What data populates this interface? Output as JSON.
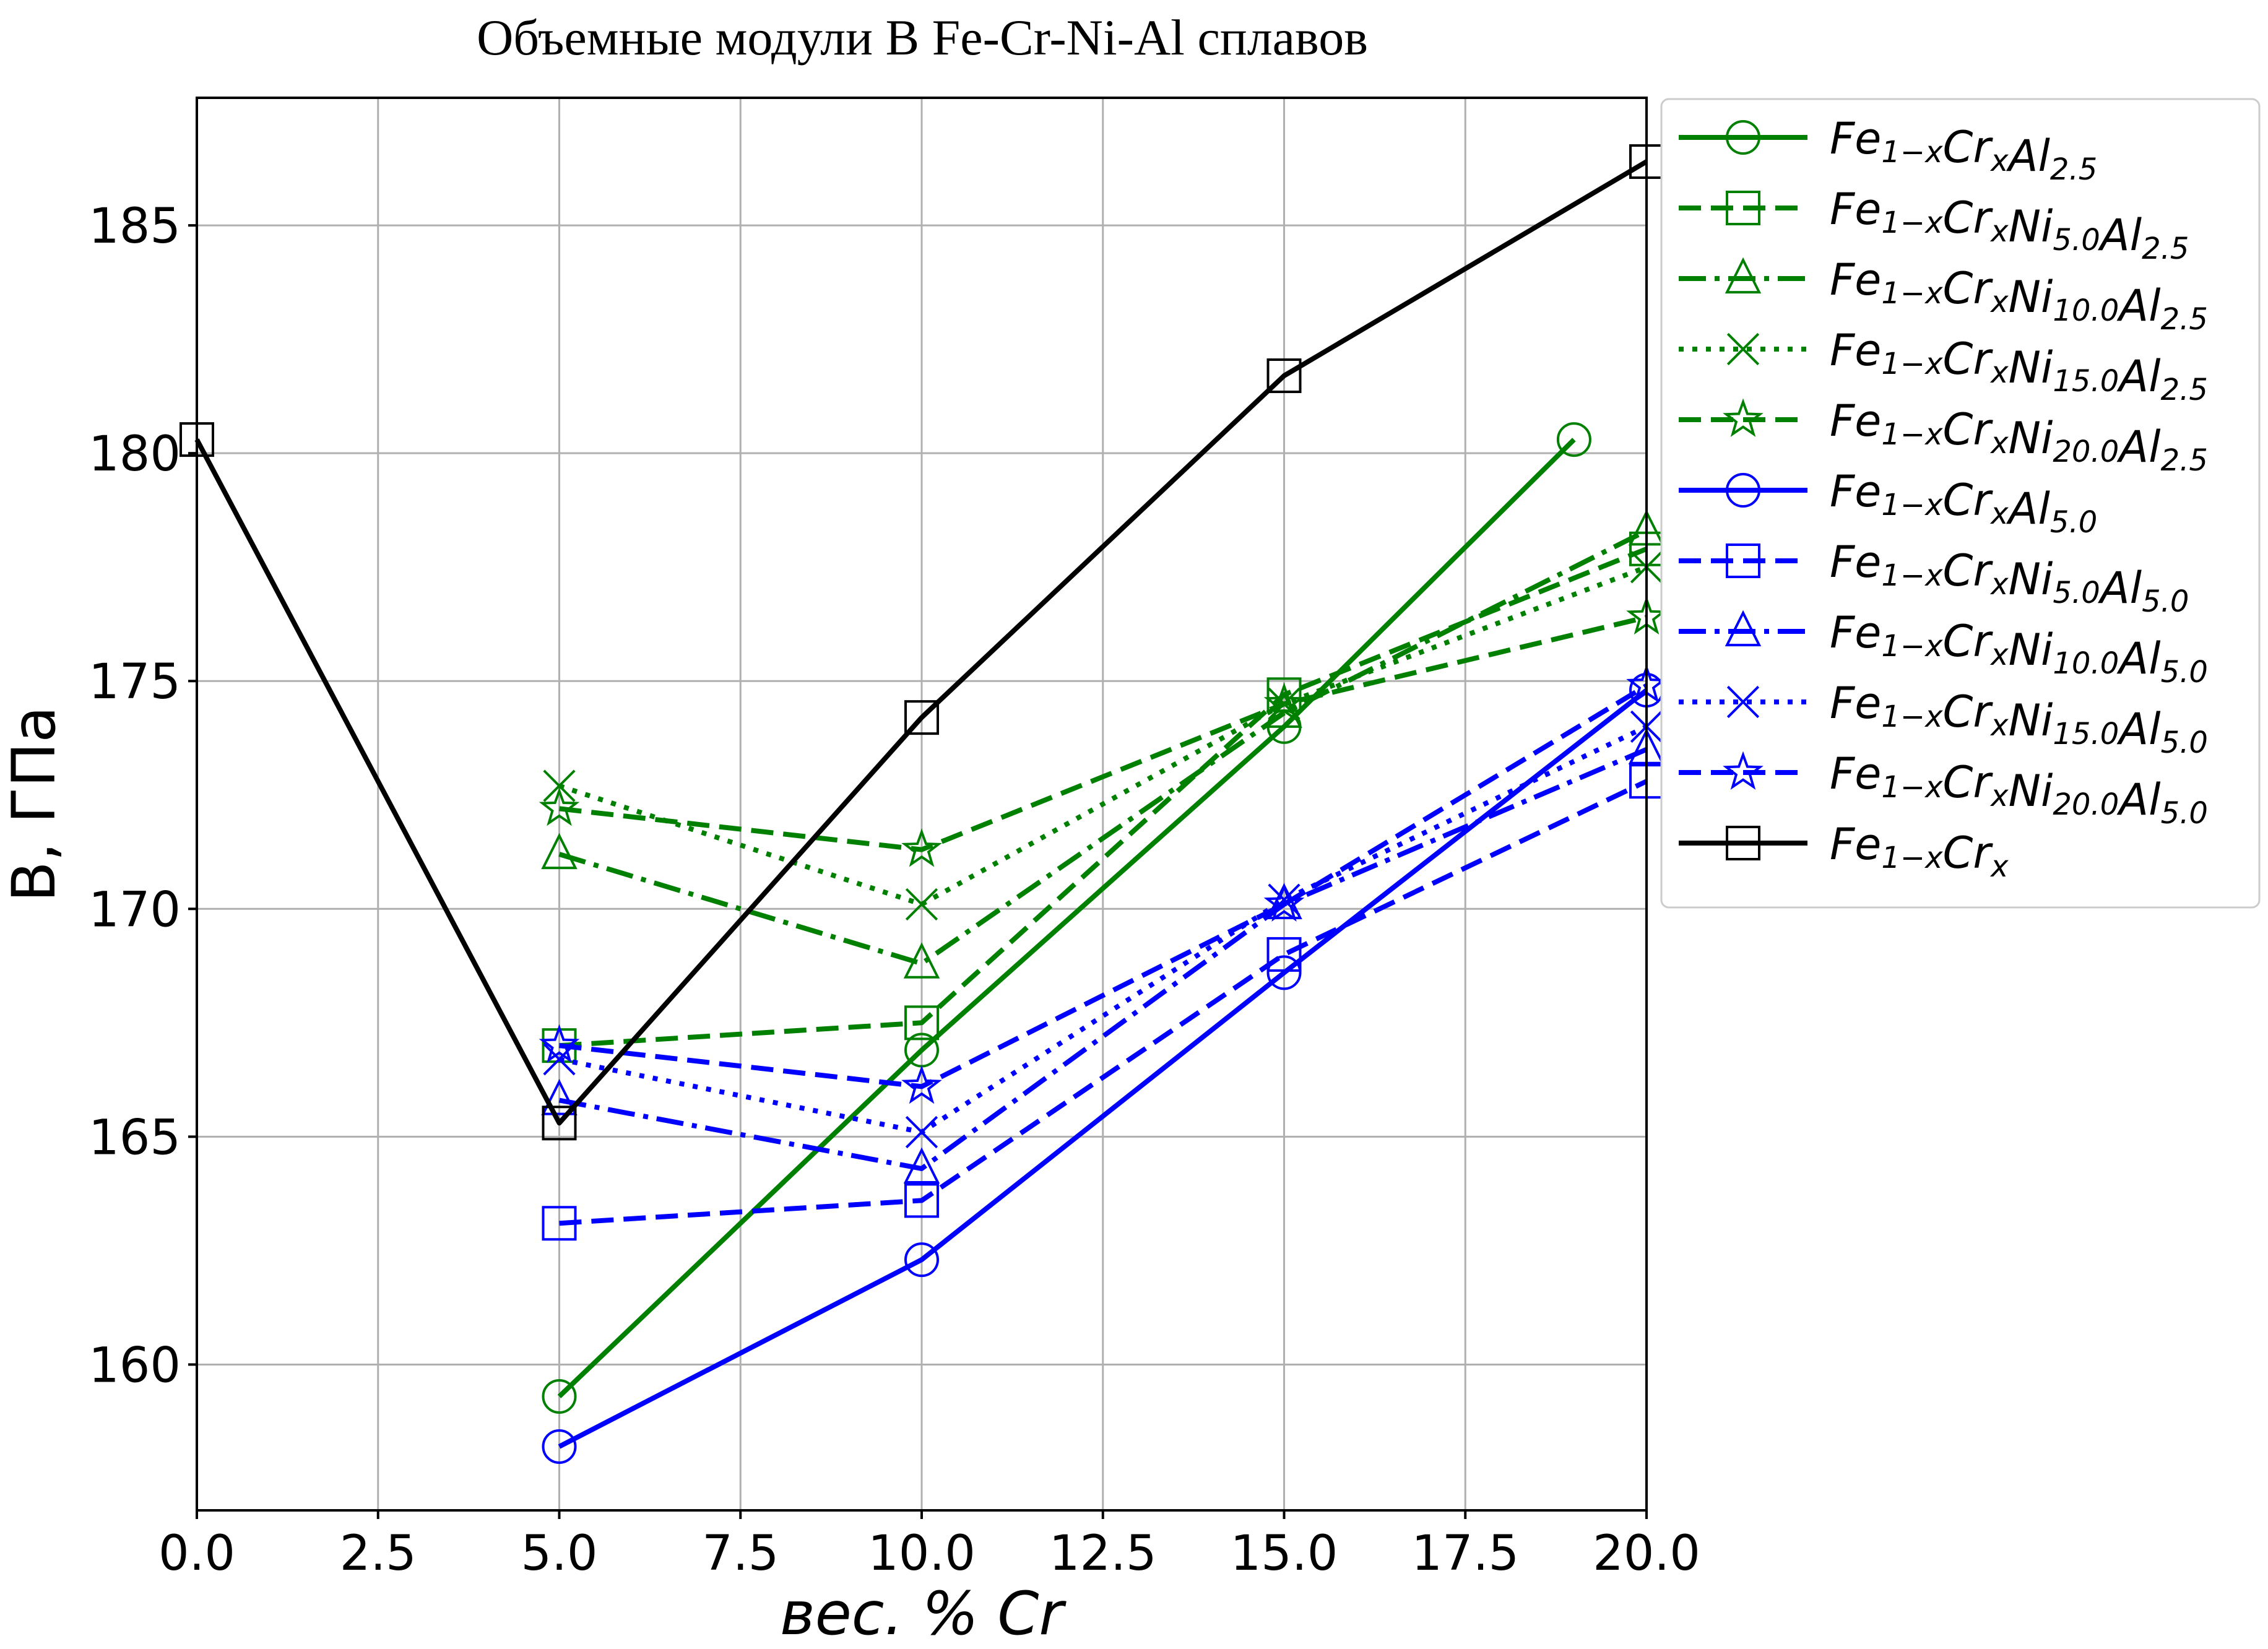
{
  "chart_data": {
    "type": "line",
    "title": "Объемные модули B Fe-Cr-Ni-Al сплавов",
    "xlabel": "вес. % Cr",
    "ylabel": "B, ГПа",
    "xlim": [
      0,
      20
    ],
    "ylim": [
      156.8,
      187.8
    ],
    "xticks": [
      "0.0",
      "2.5",
      "5.0",
      "7.5",
      "10.0",
      "12.5",
      "15.0",
      "17.5",
      "20.0"
    ],
    "yticks": [
      "160",
      "165",
      "170",
      "175",
      "180",
      "185"
    ],
    "grid": true,
    "legend_position": "outside-right-top",
    "series": [
      {
        "name": "Fe1−xCrxAl2.5",
        "name_parts": [
          [
            "Fe",
            ""
          ],
          [
            "1−x",
            "sub"
          ],
          [
            "Cr",
            ""
          ],
          [
            "x",
            "sub"
          ],
          [
            "Al",
            ""
          ],
          [
            "2.5",
            "sub"
          ]
        ],
        "color": "#008000",
        "marker": "circle",
        "linestyle": "solid",
        "x": [
          5,
          10,
          15,
          19
        ],
        "y": [
          159.3,
          166.9,
          174.0,
          180.3
        ]
      },
      {
        "name": "Fe1−xCrxNi5.0Al2.5",
        "name_parts": [
          [
            "Fe",
            ""
          ],
          [
            "1−x",
            "sub"
          ],
          [
            "Cr",
            ""
          ],
          [
            "x",
            "sub"
          ],
          [
            "Ni",
            ""
          ],
          [
            "5.0",
            "sub"
          ],
          [
            "Al",
            ""
          ],
          [
            "2.5",
            "sub"
          ]
        ],
        "color": "#008000",
        "marker": "square",
        "linestyle": "dashed",
        "x": [
          5,
          10,
          15,
          20
        ],
        "y": [
          167.0,
          167.5,
          174.7,
          177.9
        ]
      },
      {
        "name": "Fe1−xCrxNi10.0Al2.5",
        "name_parts": [
          [
            "Fe",
            ""
          ],
          [
            "1−x",
            "sub"
          ],
          [
            "Cr",
            ""
          ],
          [
            "x",
            "sub"
          ],
          [
            "Ni",
            ""
          ],
          [
            "10.0",
            "sub"
          ],
          [
            "Al",
            ""
          ],
          [
            "2.5",
            "sub"
          ]
        ],
        "color": "#008000",
        "marker": "triangle",
        "linestyle": "dashdot",
        "x": [
          5,
          10,
          15,
          20
        ],
        "y": [
          171.2,
          168.8,
          174.3,
          178.3
        ]
      },
      {
        "name": "Fe1−xCrxNi15.0Al2.5",
        "name_parts": [
          [
            "Fe",
            ""
          ],
          [
            "1−x",
            "sub"
          ],
          [
            "Cr",
            ""
          ],
          [
            "x",
            "sub"
          ],
          [
            "Ni",
            ""
          ],
          [
            "15.0",
            "sub"
          ],
          [
            "Al",
            ""
          ],
          [
            "2.5",
            "sub"
          ]
        ],
        "color": "#008000",
        "marker": "x",
        "linestyle": "dotted",
        "x": [
          5,
          10,
          15,
          20
        ],
        "y": [
          172.7,
          170.1,
          174.5,
          177.5
        ]
      },
      {
        "name": "Fe1−xCrxNi20.0Al2.5",
        "name_parts": [
          [
            "Fe",
            ""
          ],
          [
            "1−x",
            "sub"
          ],
          [
            "Cr",
            ""
          ],
          [
            "x",
            "sub"
          ],
          [
            "Ni",
            ""
          ],
          [
            "20.0",
            "sub"
          ],
          [
            "Al",
            ""
          ],
          [
            "2.5",
            "sub"
          ]
        ],
        "color": "#008000",
        "marker": "star",
        "linestyle": "dashed",
        "x": [
          5,
          10,
          15,
          20
        ],
        "y": [
          172.2,
          171.3,
          174.5,
          176.4
        ]
      },
      {
        "name": "Fe1−xCrxAl5.0",
        "name_parts": [
          [
            "Fe",
            ""
          ],
          [
            "1−x",
            "sub"
          ],
          [
            "Cr",
            ""
          ],
          [
            "x",
            "sub"
          ],
          [
            "Al",
            ""
          ],
          [
            "5.0",
            "sub"
          ]
        ],
        "color": "#0000ff",
        "marker": "circle",
        "linestyle": "solid",
        "x": [
          5,
          10,
          15,
          20
        ],
        "y": [
          158.2,
          162.3,
          168.6,
          174.8
        ]
      },
      {
        "name": "Fe1−xCrxNi5.0Al5.0",
        "name_parts": [
          [
            "Fe",
            ""
          ],
          [
            "1−x",
            "sub"
          ],
          [
            "Cr",
            ""
          ],
          [
            "x",
            "sub"
          ],
          [
            "Ni",
            ""
          ],
          [
            "5.0",
            "sub"
          ],
          [
            "Al",
            ""
          ],
          [
            "5.0",
            "sub"
          ]
        ],
        "color": "#0000ff",
        "marker": "square",
        "linestyle": "dashed",
        "x": [
          5,
          10,
          15,
          20
        ],
        "y": [
          163.1,
          163.6,
          169.0,
          172.8
        ]
      },
      {
        "name": "Fe1−xCrxNi10.0Al5.0",
        "name_parts": [
          [
            "Fe",
            ""
          ],
          [
            "1−x",
            "sub"
          ],
          [
            "Cr",
            ""
          ],
          [
            "x",
            "sub"
          ],
          [
            "Ni",
            ""
          ],
          [
            "10.0",
            "sub"
          ],
          [
            "Al",
            ""
          ],
          [
            "5.0",
            "sub"
          ]
        ],
        "color": "#0000ff",
        "marker": "triangle",
        "linestyle": "dashdot",
        "x": [
          5,
          10,
          15,
          20
        ],
        "y": [
          165.8,
          164.3,
          170.1,
          173.5
        ]
      },
      {
        "name": "Fe1−xCrxNi15.0Al5.0",
        "name_parts": [
          [
            "Fe",
            ""
          ],
          [
            "1−x",
            "sub"
          ],
          [
            "Cr",
            ""
          ],
          [
            "x",
            "sub"
          ],
          [
            "Ni",
            ""
          ],
          [
            "15.0",
            "sub"
          ],
          [
            "Al",
            ""
          ],
          [
            "5.0",
            "sub"
          ]
        ],
        "color": "#0000ff",
        "marker": "x",
        "linestyle": "dotted",
        "x": [
          5,
          10,
          15,
          20
        ],
        "y": [
          166.7,
          165.1,
          170.2,
          174.0
        ]
      },
      {
        "name": "Fe1−xCrxNi20.0Al5.0",
        "name_parts": [
          [
            "Fe",
            ""
          ],
          [
            "1−x",
            "sub"
          ],
          [
            "Cr",
            ""
          ],
          [
            "x",
            "sub"
          ],
          [
            "Ni",
            ""
          ],
          [
            "20.0",
            "sub"
          ],
          [
            "Al",
            ""
          ],
          [
            "5.0",
            "sub"
          ]
        ],
        "color": "#0000ff",
        "marker": "star",
        "linestyle": "dashed",
        "x": [
          5,
          10,
          15,
          20
        ],
        "y": [
          167.0,
          166.1,
          170.1,
          174.9
        ]
      },
      {
        "name": "Fe1−xCrx",
        "name_parts": [
          [
            "Fe",
            ""
          ],
          [
            "1−x",
            "sub"
          ],
          [
            "Cr",
            ""
          ],
          [
            "x",
            "sub"
          ]
        ],
        "color": "#000000",
        "marker": "square",
        "linestyle": "solid",
        "x": [
          0,
          5,
          10,
          15,
          20
        ],
        "y": [
          180.3,
          165.3,
          174.2,
          181.7,
          186.4
        ]
      }
    ]
  }
}
